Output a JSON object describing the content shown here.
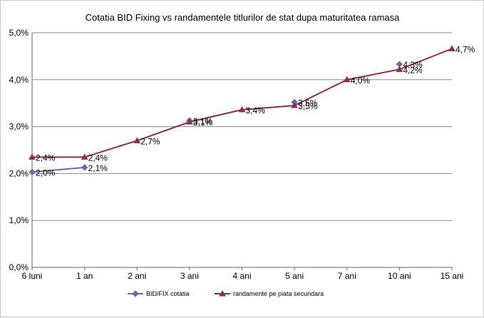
{
  "chart_data": {
    "type": "line",
    "title": "Cotatia BID Fixing  vs randamentele titlurilor de stat dupa maturitatea ramasa",
    "xlabel": "",
    "ylabel": "",
    "categories": [
      "6 luni",
      "1 an",
      "2 ani",
      "3 ani",
      "4 ani",
      "5 ani",
      "7 ani",
      "10 ani",
      "15 ani"
    ],
    "y_ticks": [
      "0,0%",
      "1,0%",
      "2,0%",
      "3,0%",
      "4,0%",
      "5,0%"
    ],
    "ylim": [
      0,
      5
    ],
    "grid": true,
    "legend_position": "bottom",
    "series": [
      {
        "name": "BID/FIX cotatia",
        "color": "#6b6ba8",
        "marker": "diamond",
        "points": [
          {
            "x": "6 luni",
            "y": 2.03,
            "label": "2,0%"
          },
          {
            "x": "1 an",
            "y": 2.13,
            "label": "2,1%"
          },
          {
            "x": "3 ani",
            "y": 3.13,
            "label": "3,1%"
          },
          {
            "x": "5 ani",
            "y": 3.52,
            "label": "3,5%"
          },
          {
            "x": "10 ani",
            "y": 4.33,
            "label": "4,3%"
          }
        ]
      },
      {
        "name": "randamente pe piata secundara",
        "color": "#8b2a52",
        "marker": "triangle",
        "points": [
          {
            "x": "6 luni",
            "y": 2.35,
            "label": "2,4%"
          },
          {
            "x": "1 an",
            "y": 2.35,
            "label": "2,4%"
          },
          {
            "x": "2 ani",
            "y": 2.7,
            "label": "2,7%"
          },
          {
            "x": "3 ani",
            "y": 3.1,
            "label": "3,1%"
          },
          {
            "x": "4 ani",
            "y": 3.36,
            "label": "3,4%"
          },
          {
            "x": "5 ani",
            "y": 3.45,
            "label": "3,5%"
          },
          {
            "x": "7 ani",
            "y": 4.0,
            "label": "4,0%"
          },
          {
            "x": "10 ani",
            "y": 4.22,
            "label": "4,2%"
          },
          {
            "x": "15 ani",
            "y": 4.66,
            "label": "4,7%"
          }
        ]
      }
    ]
  }
}
